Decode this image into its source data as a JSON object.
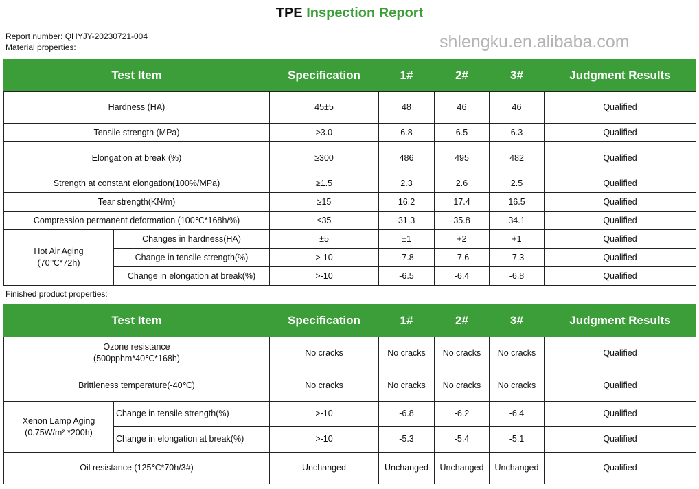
{
  "title": {
    "prefix": "TPE",
    "main": "Inspection Report"
  },
  "report_number": "Report number: QHYJY-20230721-004",
  "section1_label": "Material properties:",
  "section2_label": "Finished product properties:",
  "headers": [
    "Test Item",
    "Specification",
    "1#",
    "2#",
    "3#",
    "Judgment Results"
  ],
  "watermark": "shlengku.en.alibaba.com",
  "colors": {
    "header_green": "#3c9e38"
  },
  "material_rows": [
    {
      "item": "Hardness (HA)",
      "spec": "45±5",
      "v1": "48",
      "v2": "46",
      "v3": "46",
      "result": "Qualified"
    },
    {
      "item": "Tensile strength (MPa)",
      "spec": "≥3.0",
      "v1": "6.8",
      "v2": "6.5",
      "v3": "6.3",
      "result": "Qualified"
    },
    {
      "item": "Elongation at break (%)",
      "spec": "≥300",
      "v1": "486",
      "v2": "495",
      "v3": "482",
      "result": "Qualified"
    },
    {
      "item": "Strength at constant elongation(100%/MPa)",
      "spec": "≥1.5",
      "v1": "2.3",
      "v2": "2.6",
      "v3": "2.5",
      "result": "Qualified"
    },
    {
      "item": "Tear strength(KN/m)",
      "spec": "≥15",
      "v1": "16.2",
      "v2": "17.4",
      "v3": "16.5",
      "result": "Qualified"
    },
    {
      "item": "Compression permanent deformation (100℃*168h/%)",
      "spec": "≤35",
      "v1": "31.3",
      "v2": "35.8",
      "v3": "34.1",
      "result": "Qualified"
    }
  ],
  "hot_air_aging": {
    "group": "Hot Air Aging",
    "condition": "(70℃*72h)",
    "rows": [
      {
        "item": "Changes in hardness(HA)",
        "spec": "±5",
        "v1": "±1",
        "v2": "+2",
        "v3": "+1",
        "result": "Qualified"
      },
      {
        "item": "Change in tensile strength(%)",
        "spec": ">-10",
        "v1": "-7.8",
        "v2": "-7.6",
        "v3": "-7.3",
        "result": "Qualified"
      },
      {
        "item": "Change in elongation at break(%)",
        "spec": ">-10",
        "v1": "-6.5",
        "v2": "-6.4",
        "v3": "-6.8",
        "result": "Qualified"
      }
    ]
  },
  "product_rows_top": [
    {
      "item": "Ozone resistance",
      "item2": "(500pphm*40℃*168h)",
      "spec": "No cracks",
      "v1": "No cracks",
      "v2": "No cracks",
      "v3": "No cracks",
      "result": "Qualified"
    },
    {
      "item": "Brittleness temperature(-40℃)",
      "item2": "",
      "spec": "No cracks",
      "v1": "No cracks",
      "v2": "No cracks",
      "v3": "No cracks",
      "result": "Qualified"
    }
  ],
  "xenon_aging": {
    "group": "Xenon Lamp Aging",
    "condition": "(0.75W/m² *200h)",
    "rows": [
      {
        "item": "Change in tensile strength(%)",
        "spec": ">-10",
        "v1": "-6.8",
        "v2": "-6.2",
        "v3": "-6.4",
        "result": "Qualified"
      },
      {
        "item": "Change in elongation at break(%)",
        "spec": ">-10",
        "v1": "-5.3",
        "v2": "-5.4",
        "v3": "-5.1",
        "result": "Qualified"
      }
    ]
  },
  "product_rows_bottom": [
    {
      "item": "Oil resistance (125℃*70h/3#)",
      "spec": "Unchanged",
      "v1": "Unchanged",
      "v2": "Unchanged",
      "v3": "Unchanged",
      "result": "Qualified"
    }
  ]
}
